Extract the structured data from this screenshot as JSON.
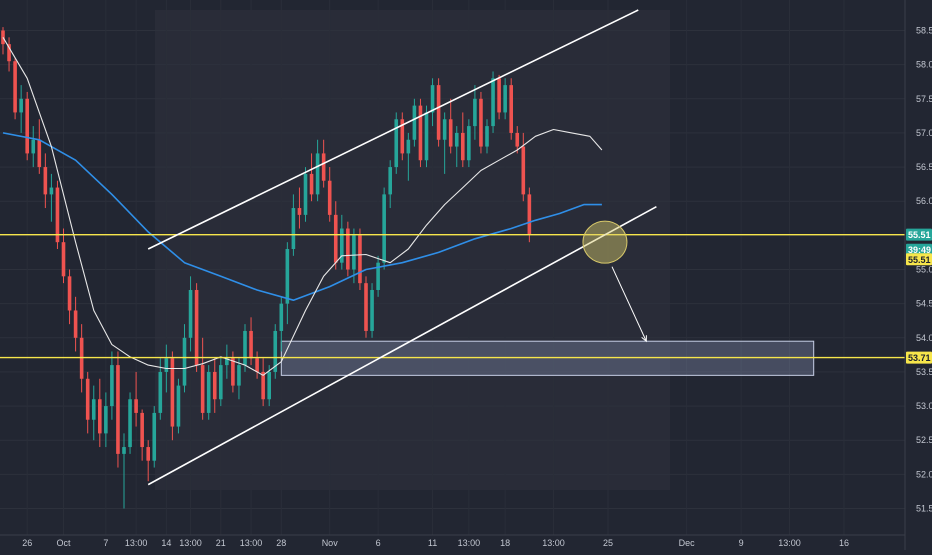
{
  "chart_data": {
    "type": "candlestick",
    "instrument": "",
    "y_axis": {
      "position": "right",
      "range": [
        51.2,
        58.8
      ],
      "ticks": [
        "58.50",
        "58.00",
        "57.50",
        "57.00",
        "56.50",
        "56.00",
        "55.50",
        "55.00",
        "54.50",
        "54.00",
        "53.50",
        "53.00",
        "52.50",
        "52.00",
        "51.50"
      ]
    },
    "x_axis": {
      "tick_labels": [
        "26",
        "Oct",
        "7",
        "13:00",
        "14",
        "13:00",
        "21",
        "13:00",
        "28",
        "Nov",
        "6",
        "11",
        "13:00",
        "18",
        "13:00",
        "25",
        "Dec",
        "9",
        "13:00",
        "16"
      ],
      "tick_index": [
        4,
        10,
        17,
        22,
        27,
        31,
        36,
        41,
        46,
        54,
        62,
        71,
        77,
        83,
        91,
        100,
        113,
        122,
        130,
        139
      ]
    },
    "price_tags": [
      {
        "value": 55.51,
        "label": "55.51",
        "color": "#26a69a"
      },
      {
        "value": 55.29,
        "label": "39:49",
        "color": "#26a69a"
      },
      {
        "value": 55.15,
        "label": "55.51",
        "color": "#f7e64b"
      },
      {
        "value": 53.71,
        "label": "53.71",
        "color": "#f7e64b"
      }
    ],
    "horizontal_levels": [
      {
        "value": 55.51,
        "color": "#f7e64b"
      },
      {
        "value": 53.71,
        "color": "#f7e64b"
      }
    ],
    "channel": {
      "upper": [
        [
          24,
          55.3
        ],
        [
          105,
          58.8
        ]
      ],
      "lower": [
        [
          24,
          51.85
        ],
        [
          108,
          55.92
        ]
      ]
    },
    "demand_zone": {
      "x_from": 46,
      "x_to": 134,
      "y_from": 53.45,
      "y_to": 53.95
    },
    "highlight_circle": {
      "x": 99,
      "y": 55.4
    },
    "projection_arrow": {
      "from": [
        100,
        55.1
      ],
      "to": [
        106,
        53.95
      ]
    },
    "colors": {
      "up": "#26a69a",
      "down": "#ef5350",
      "ma_fast": "#e8e8e8",
      "ma_slow": "#2f8fe8",
      "channel": "#ffffff",
      "level": "#f7e64b"
    },
    "sma_fast": [
      [
        0,
        58.4
      ],
      [
        4,
        57.8
      ],
      [
        8,
        56.8
      ],
      [
        12,
        55.4
      ],
      [
        15,
        54.4
      ],
      [
        18,
        53.9
      ],
      [
        21,
        53.72
      ],
      [
        24,
        53.6
      ],
      [
        27,
        53.55
      ],
      [
        30,
        53.55
      ],
      [
        33,
        53.62
      ],
      [
        36,
        53.72
      ],
      [
        40,
        53.6
      ],
      [
        43,
        53.45
      ],
      [
        46,
        53.65
      ],
      [
        50,
        54.4
      ],
      [
        53,
        54.9
      ],
      [
        56,
        55.2
      ],
      [
        60,
        55.22
      ],
      [
        64,
        55.1
      ],
      [
        67,
        55.3
      ],
      [
        70,
        55.65
      ],
      [
        73,
        55.95
      ],
      [
        76,
        56.2
      ],
      [
        79,
        56.45
      ],
      [
        82,
        56.6
      ],
      [
        85,
        56.75
      ],
      [
        88,
        56.95
      ],
      [
        91,
        57.05
      ],
      [
        94,
        57.0
      ],
      [
        97,
        56.95
      ],
      [
        99,
        56.75
      ]
    ],
    "sma_slow": [
      [
        0,
        57.0
      ],
      [
        6,
        56.9
      ],
      [
        12,
        56.6
      ],
      [
        18,
        56.1
      ],
      [
        24,
        55.55
      ],
      [
        30,
        55.1
      ],
      [
        36,
        54.9
      ],
      [
        42,
        54.7
      ],
      [
        48,
        54.55
      ],
      [
        54,
        54.75
      ],
      [
        60,
        55.0
      ],
      [
        66,
        55.1
      ],
      [
        72,
        55.25
      ],
      [
        78,
        55.45
      ],
      [
        84,
        55.6
      ],
      [
        88,
        55.72
      ],
      [
        92,
        55.82
      ],
      [
        96,
        55.95
      ],
      [
        99,
        55.95
      ]
    ],
    "candles": [
      [
        58.5,
        58.55,
        58.15,
        58.3
      ],
      [
        58.3,
        58.4,
        57.9,
        58.05
      ],
      [
        58.05,
        58.1,
        57.2,
        57.3
      ],
      [
        57.3,
        57.7,
        57.0,
        57.5
      ],
      [
        57.5,
        57.6,
        56.6,
        56.7
      ],
      [
        56.7,
        57.1,
        56.5,
        56.9
      ],
      [
        56.9,
        57.2,
        56.4,
        56.5
      ],
      [
        56.5,
        56.7,
        55.9,
        56.1
      ],
      [
        56.1,
        56.4,
        55.7,
        56.2
      ],
      [
        56.2,
        56.3,
        55.3,
        55.4
      ],
      [
        55.4,
        55.6,
        54.8,
        54.9
      ],
      [
        54.9,
        55.0,
        54.2,
        54.4
      ],
      [
        54.4,
        54.6,
        53.8,
        54.0
      ],
      [
        54.0,
        54.2,
        53.2,
        53.4
      ],
      [
        53.4,
        53.5,
        52.6,
        52.8
      ],
      [
        52.8,
        53.3,
        52.5,
        53.1
      ],
      [
        53.1,
        53.4,
        52.4,
        52.6
      ],
      [
        52.6,
        53.2,
        52.4,
        53.0
      ],
      [
        53.0,
        53.8,
        52.8,
        53.6
      ],
      [
        53.6,
        53.8,
        52.1,
        52.3
      ],
      [
        52.3,
        52.6,
        51.5,
        52.4
      ],
      [
        52.4,
        53.2,
        52.3,
        53.1
      ],
      [
        53.1,
        53.5,
        52.7,
        52.9
      ],
      [
        52.9,
        52.95,
        52.2,
        52.4
      ],
      [
        52.4,
        52.5,
        51.9,
        52.2
      ],
      [
        52.2,
        53.0,
        52.1,
        52.9
      ],
      [
        52.9,
        53.7,
        52.8,
        53.5
      ],
      [
        53.5,
        53.9,
        53.2,
        53.7
      ],
      [
        53.7,
        53.8,
        52.5,
        52.7
      ],
      [
        52.7,
        53.4,
        52.6,
        53.3
      ],
      [
        53.3,
        54.2,
        53.2,
        54.0
      ],
      [
        54.0,
        54.9,
        53.8,
        54.7
      ],
      [
        54.7,
        54.8,
        53.5,
        53.6
      ],
      [
        53.6,
        54.0,
        52.8,
        52.9
      ],
      [
        52.9,
        53.6,
        52.8,
        53.5
      ],
      [
        53.5,
        53.7,
        52.9,
        53.1
      ],
      [
        53.1,
        53.7,
        53.0,
        53.6
      ],
      [
        53.6,
        53.9,
        53.4,
        53.7
      ],
      [
        53.7,
        53.8,
        53.2,
        53.3
      ],
      [
        53.3,
        53.7,
        53.1,
        53.6
      ],
      [
        53.6,
        54.2,
        53.5,
        54.1
      ],
      [
        54.1,
        54.3,
        53.6,
        53.7
      ],
      [
        53.7,
        53.8,
        53.4,
        53.5
      ],
      [
        53.5,
        53.7,
        53.0,
        53.1
      ],
      [
        53.1,
        53.6,
        53.0,
        53.5
      ],
      [
        53.5,
        54.2,
        53.4,
        54.1
      ],
      [
        54.1,
        54.6,
        53.8,
        54.5
      ],
      [
        54.5,
        55.4,
        54.2,
        55.3
      ],
      [
        55.3,
        56.1,
        55.2,
        55.9
      ],
      [
        55.9,
        56.2,
        55.6,
        55.8
      ],
      [
        55.8,
        56.5,
        55.7,
        56.4
      ],
      [
        56.4,
        56.7,
        56.0,
        56.1
      ],
      [
        56.1,
        56.9,
        56.0,
        56.7
      ],
      [
        56.7,
        56.9,
        56.2,
        56.3
      ],
      [
        56.3,
        56.5,
        55.7,
        55.8
      ],
      [
        55.8,
        56.0,
        55.0,
        55.1
      ],
      [
        55.1,
        55.8,
        55.0,
        55.6
      ],
      [
        55.6,
        55.7,
        54.9,
        55.0
      ],
      [
        55.0,
        55.6,
        54.8,
        55.5
      ],
      [
        55.5,
        55.6,
        54.7,
        54.8
      ],
      [
        54.8,
        54.9,
        54.0,
        54.1
      ],
      [
        54.1,
        54.8,
        54.0,
        54.7
      ],
      [
        54.7,
        55.2,
        54.6,
        55.1
      ],
      [
        55.1,
        56.2,
        55.0,
        56.1
      ],
      [
        56.1,
        56.6,
        55.9,
        56.5
      ],
      [
        56.5,
        57.3,
        56.4,
        57.2
      ],
      [
        57.2,
        57.3,
        56.6,
        56.7
      ],
      [
        56.7,
        57.0,
        56.3,
        56.9
      ],
      [
        56.9,
        57.5,
        56.8,
        57.4
      ],
      [
        57.4,
        57.5,
        56.5,
        56.6
      ],
      [
        56.6,
        57.4,
        56.5,
        57.3
      ],
      [
        57.3,
        57.8,
        57.1,
        57.7
      ],
      [
        57.7,
        57.8,
        56.8,
        56.9
      ],
      [
        56.9,
        57.3,
        56.4,
        57.2
      ],
      [
        57.2,
        57.5,
        56.7,
        56.8
      ],
      [
        56.8,
        57.1,
        56.5,
        57.0
      ],
      [
        57.0,
        57.3,
        56.5,
        56.6
      ],
      [
        56.6,
        57.2,
        56.5,
        57.1
      ],
      [
        57.1,
        57.7,
        56.9,
        57.5
      ],
      [
        57.5,
        57.6,
        56.7,
        56.8
      ],
      [
        56.8,
        57.2,
        56.7,
        57.1
      ],
      [
        57.1,
        57.9,
        57.0,
        57.8
      ],
      [
        57.8,
        57.85,
        57.2,
        57.3
      ],
      [
        57.3,
        57.8,
        57.2,
        57.7
      ],
      [
        57.7,
        57.8,
        56.9,
        57.0
      ],
      [
        57.0,
        57.1,
        56.7,
        56.8
      ],
      [
        56.8,
        57.0,
        56.0,
        56.1
      ],
      [
        56.1,
        56.2,
        55.4,
        55.51
      ]
    ]
  }
}
